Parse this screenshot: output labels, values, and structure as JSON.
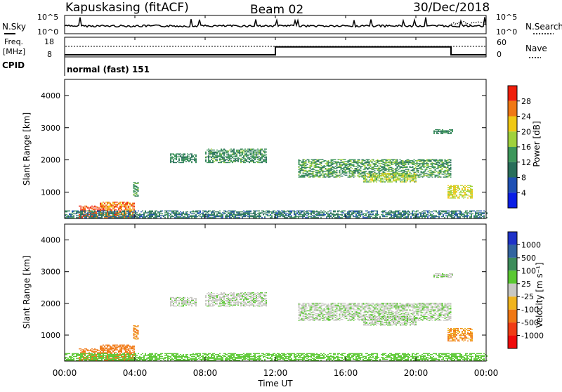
{
  "header": {
    "station": "Kapuskasing (fitACF)",
    "beam": "Beam 02",
    "date": "30/Dec/2018"
  },
  "nsky_panel": {
    "left_label": "N.Sky",
    "right_label": "N.Search",
    "y_ticks": [
      "10^5",
      "10^0"
    ],
    "right_ticks": [
      "10^5",
      "10^0"
    ]
  },
  "freq_panel": {
    "left_label_line1": "Freq.",
    "left_label_line2": "[MHz]",
    "right_label": "Nave",
    "left_ticks": [
      "18",
      "8"
    ],
    "right_ticks": [
      "60",
      "0"
    ],
    "cpid_label": "CPID",
    "mode_text": "normal (fast) 151"
  },
  "power_panel": {
    "ylabel": "Slant Range [km]",
    "y_ticks": [
      "4000",
      "3000",
      "2000",
      "1000"
    ],
    "colorbar_label": "Power [dB]",
    "colorbar_ticks": [
      "28",
      "24",
      "20",
      "16",
      "12",
      "8",
      "4"
    ],
    "colorbar_colors": [
      "#0a1ee6",
      "#1e50b4",
      "#286e5a",
      "#3c965a",
      "#a0d23c",
      "#f0c814",
      "#f07814",
      "#f01e0a"
    ]
  },
  "velocity_panel": {
    "ylabel": "Slant Range [km]",
    "y_ticks": [
      "4000",
      "3000",
      "2000",
      "1000"
    ],
    "colorbar_label": "Velocity [m s⁻¹]",
    "colorbar_ticks": [
      "1000",
      "500",
      "100",
      "25",
      "-25",
      "-100",
      "-500",
      "-1000"
    ],
    "colorbar_colors": [
      "#1e32c8",
      "#3264a0",
      "#3c8c5a",
      "#5ac832",
      "#c8c8c3",
      "#f0b41e",
      "#f07814",
      "#f03c14",
      "#f00a0a"
    ]
  },
  "x_axis": {
    "ticks": [
      "00:00",
      "04:00",
      "08:00",
      "12:00",
      "16:00",
      "20:00",
      "00:00"
    ],
    "label": "Time UT"
  },
  "chart_data": {
    "type": "heatmap",
    "x_range_hours": [
      0,
      24
    ],
    "y_range_km": [
      180,
      4500
    ],
    "frequency_steps": [
      {
        "start_hour": 0,
        "end_hour": 12,
        "freq_mhz": 10.5
      },
      {
        "start_hour": 12,
        "end_hour": 22,
        "freq_mhz": 14.5
      },
      {
        "start_hour": 22,
        "end_hour": 24,
        "freq_mhz": 10.5
      }
    ],
    "echo_regions": [
      {
        "t0": 0.8,
        "t1": 2.0,
        "r0": 190,
        "r1": 560,
        "power": 28,
        "vel": -150
      },
      {
        "t0": 2.0,
        "t1": 4.0,
        "r0": 190,
        "r1": 700,
        "power": 26,
        "vel": -150
      },
      {
        "t0": 3.9,
        "t1": 4.2,
        "r0": 860,
        "r1": 1300,
        "power": 14,
        "vel": -120
      },
      {
        "t0": 6.0,
        "t1": 7.5,
        "r0": 1900,
        "r1": 2200,
        "power": 12,
        "vel": 10
      },
      {
        "t0": 8.0,
        "t1": 11.5,
        "r0": 1900,
        "r1": 2350,
        "power": 13,
        "vel": 10
      },
      {
        "t0": 13.3,
        "t1": 22.0,
        "r0": 1450,
        "r1": 2000,
        "power": 14,
        "vel": 15
      },
      {
        "t0": 17.0,
        "t1": 20.0,
        "r0": 1300,
        "r1": 1600,
        "power": 18,
        "vel": 15
      },
      {
        "t0": 21.8,
        "t1": 23.2,
        "r0": 800,
        "r1": 1200,
        "power": 20,
        "vel": -110
      },
      {
        "t0": 21.0,
        "t1": 22.1,
        "r0": 2800,
        "r1": 2950,
        "power": 12,
        "vel": 10
      },
      {
        "t0": 0,
        "t1": 24,
        "r0": 190,
        "r1": 420,
        "power": 10,
        "vel": 60
      }
    ]
  }
}
